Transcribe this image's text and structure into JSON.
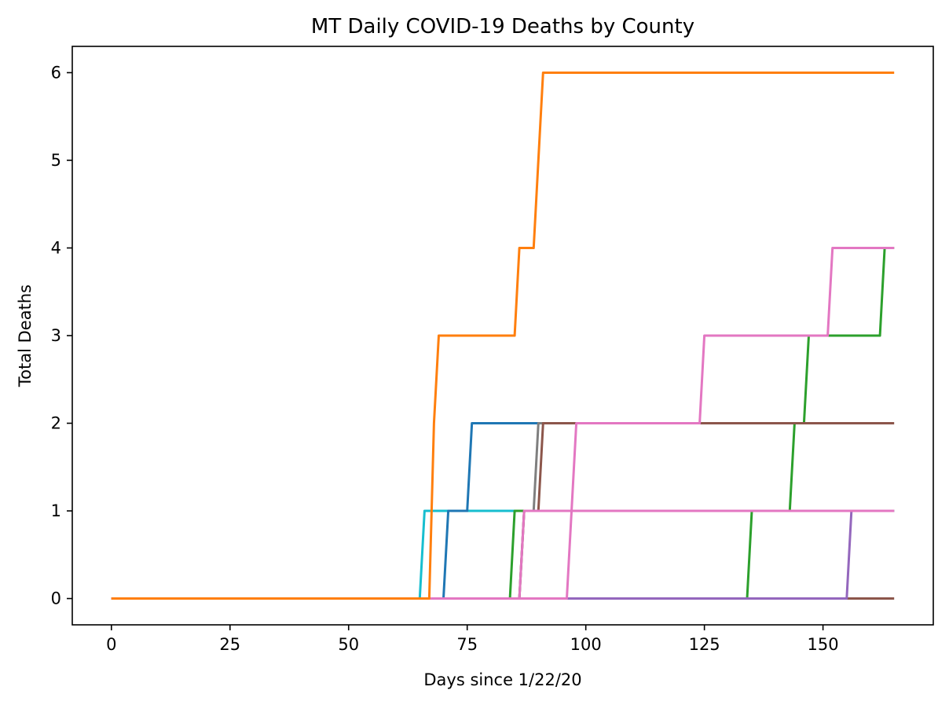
{
  "chart_data": {
    "type": "line",
    "title": "MT Daily COVID-19 Deaths by County",
    "xlabel": "Days since 1/22/20",
    "ylabel": "Total Deaths",
    "xlim": [
      -8.25,
      173.25
    ],
    "ylim": [
      -0.3,
      6.3
    ],
    "x_ticks": [
      0,
      25,
      50,
      75,
      100,
      125,
      150
    ],
    "y_ticks": [
      0,
      1,
      2,
      3,
      4,
      5,
      6
    ],
    "grid": false,
    "legend": "none",
    "series": [
      {
        "color": "#8c564b",
        "points": [
          [
            0,
            0
          ],
          [
            165,
            0
          ]
        ]
      },
      {
        "color": "#2ca02c",
        "points": [
          [
            0,
            0
          ],
          [
            134,
            0
          ],
          [
            135,
            1
          ],
          [
            165,
            1
          ]
        ]
      },
      {
        "color": "#9467bd",
        "points": [
          [
            0,
            0
          ],
          [
            155,
            0
          ],
          [
            156,
            1
          ],
          [
            165,
            1
          ]
        ]
      },
      {
        "color": "#17becf",
        "points": [
          [
            0,
            0
          ],
          [
            65,
            0
          ],
          [
            66,
            1
          ],
          [
            86,
            1
          ]
        ]
      },
      {
        "color": "#2ca02c",
        "points": [
          [
            0,
            0
          ],
          [
            84,
            0
          ],
          [
            85,
            1
          ],
          [
            143,
            1
          ],
          [
            144,
            2
          ],
          [
            146,
            2
          ],
          [
            147,
            3
          ],
          [
            162,
            3
          ],
          [
            163,
            4
          ],
          [
            165,
            4
          ]
        ]
      },
      {
        "color": "#1f77b4",
        "points": [
          [
            0,
            0
          ],
          [
            70,
            0
          ],
          [
            71,
            1
          ],
          [
            75,
            1
          ],
          [
            76,
            2
          ],
          [
            90,
            2
          ]
        ]
      },
      {
        "color": "#7f7f7f",
        "points": [
          [
            0,
            0
          ],
          [
            86,
            0
          ],
          [
            87,
            1
          ],
          [
            89,
            1
          ],
          [
            90,
            2
          ],
          [
            91,
            2
          ]
        ]
      },
      {
        "color": "#8c564b",
        "points": [
          [
            0,
            0
          ],
          [
            86,
            0
          ],
          [
            87,
            1
          ],
          [
            90,
            1
          ],
          [
            91,
            2
          ],
          [
            165,
            2
          ]
        ]
      },
      {
        "color": "#e377c2",
        "points": [
          [
            0,
            0
          ],
          [
            86,
            0
          ],
          [
            87,
            1
          ],
          [
            165,
            1
          ]
        ]
      },
      {
        "color": "#e377c2",
        "points": [
          [
            0,
            0
          ],
          [
            96,
            0
          ],
          [
            98,
            2
          ],
          [
            124,
            2
          ],
          [
            125,
            3
          ],
          [
            151,
            3
          ],
          [
            152,
            4
          ],
          [
            165,
            4
          ]
        ]
      },
      {
        "color": "#ff7f0e",
        "points": [
          [
            0,
            0
          ],
          [
            67,
            0
          ],
          [
            68,
            2
          ],
          [
            69,
            3
          ],
          [
            85,
            3
          ],
          [
            86,
            4
          ],
          [
            89,
            4
          ],
          [
            90,
            5
          ],
          [
            91,
            6
          ],
          [
            165,
            6
          ]
        ]
      }
    ]
  }
}
